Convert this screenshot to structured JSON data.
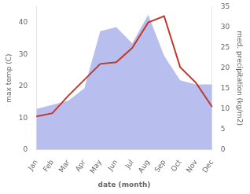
{
  "chart_data": {
    "type": "line",
    "xlabel": "date (month)",
    "ylabel": "max temp (C)",
    "y2label": "med. precipitation (kg/m2)",
    "categories": [
      "Jan",
      "Feb",
      "Mar",
      "Apr",
      "May",
      "Jun",
      "Jul",
      "Aug",
      "Sep",
      "Oct",
      "Nov",
      "Dec"
    ],
    "series": [
      {
        "type": "area",
        "color": "#b8bfee",
        "axis": "y2",
        "values": [
          10.0,
          11.0,
          12.0,
          15.0,
          29.0,
          30.0,
          26.0,
          33.0,
          23.0,
          17.0,
          16.0,
          16.0
        ]
      },
      {
        "type": "line",
        "color": "#c0392b",
        "values": [
          10.5,
          11.5,
          17.0,
          22.0,
          27.0,
          27.5,
          32.0,
          40.0,
          42.0,
          26.0,
          21.0,
          13.5
        ]
      }
    ],
    "ylim": [
      0,
      45
    ],
    "yticks": [
      0,
      10,
      20,
      30,
      40
    ],
    "y2lim": [
      0,
      35
    ],
    "y2ticks": [
      0,
      5,
      10,
      15,
      20,
      25,
      30,
      35
    ],
    "grid": false
  }
}
